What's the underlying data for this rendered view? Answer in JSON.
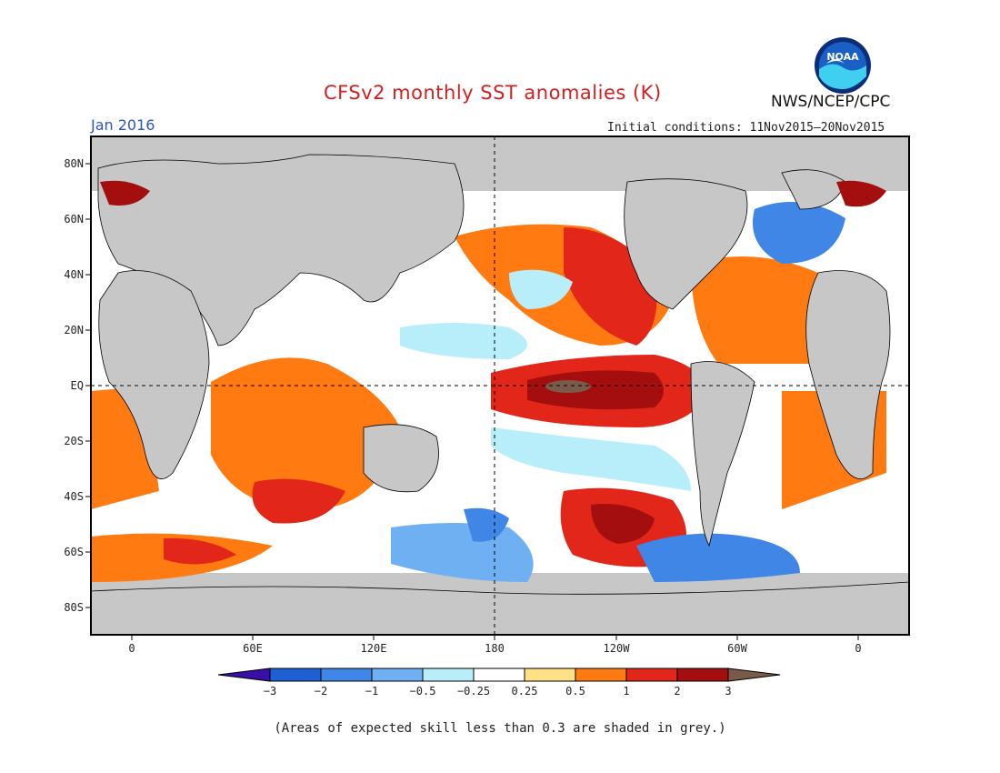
{
  "header": {
    "title": "CFSv2 monthly SST anomalies (K)",
    "agency": "NWS/NCEP/CPC",
    "month": "Jan 2016",
    "initial_conditions": "Initial conditions: 11Nov2015–20Nov2015",
    "logo_text": "NOAA"
  },
  "axes": {
    "lat_labels": [
      "80N",
      "60N",
      "40N",
      "20N",
      "EQ",
      "20S",
      "40S",
      "60S",
      "80S"
    ],
    "lon_labels": [
      "0",
      "60E",
      "120E",
      "180",
      "120W",
      "60W",
      "0"
    ]
  },
  "colorbar": {
    "labels": [
      "−3",
      "−2",
      "−1",
      "−0.5",
      "−0.25",
      "0.25",
      "0.5",
      "1",
      "2",
      "3"
    ],
    "colors": [
      "#3a0fa8",
      "#1f5fd4",
      "#3f86e6",
      "#6fb0f2",
      "#b8eefa",
      "#ffffff",
      "#fde184",
      "#ff7a10",
      "#e2261a",
      "#a50e0e",
      "#7a5a4a"
    ]
  },
  "map_colors": {
    "land": "#c7c7c7",
    "ocean_neutral": "#ffffff"
  },
  "footnote": "(Areas of expected skill less than 0.3 are shaded in grey.)"
}
